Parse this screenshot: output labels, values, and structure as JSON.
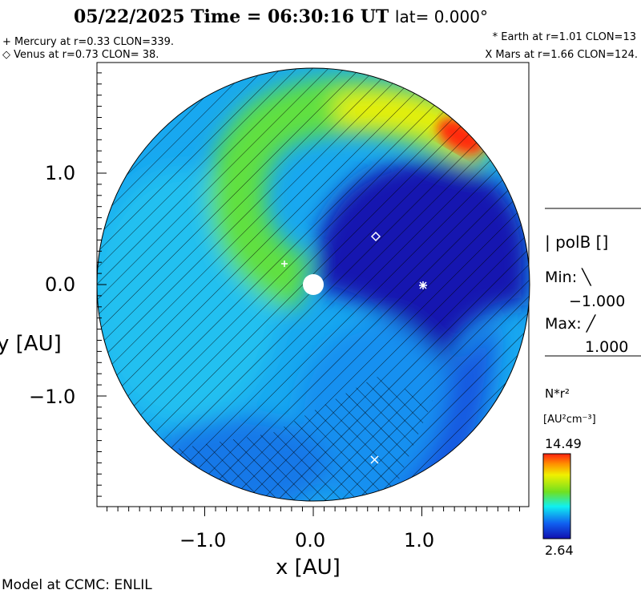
{
  "header": {
    "title_main": "05/22/2025 Time = 06:30:16 UT",
    "title_lat": "lat= 0.000°"
  },
  "planets": {
    "mercury": "+ Mercury at r=0.33 CLON=339.",
    "venus": "◇ Venus at r=0.73 CLON= 38.",
    "earth": "* Earth at  r=1.01 CLON=13",
    "mars": "X Mars at r=1.66 CLON=124."
  },
  "legend": {
    "polb_label": "|  polB []",
    "min_label": "Min: ╲",
    "min_value": "−1.000",
    "max_label": "Max: ╱",
    "max_value": "1.000",
    "colorbar_title": "N*r²",
    "colorbar_units": "[AU²cm⁻³]",
    "colorbar_max": "14.49",
    "colorbar_min": "2.64"
  },
  "footer": "Model at CCMC: ENLIL",
  "colors": {
    "red": "#ff2010",
    "yellow": "#f0f000",
    "green": "#70e020",
    "cyan": "#10f0f0",
    "blue": "#1060f0",
    "darkblue": "#1010b0"
  },
  "chart_data": {
    "type": "heatmap",
    "title": "05/22/2025 Time = 06:30:16 UT lat= 0.000°",
    "xlabel": "x [AU]",
    "ylabel": "y [AU]",
    "xlim": [
      -2,
      2
    ],
    "ylim": [
      -2,
      2
    ],
    "xticks": [
      "−1.0",
      "0.0",
      "1.0"
    ],
    "xtick_values": [
      -1,
      0,
      1
    ],
    "yticks": [
      "1.0",
      "0.0",
      "−1.0"
    ],
    "ytick_values": [
      1,
      0,
      -1
    ],
    "colorbar": {
      "label": "N*r² [AU²cm⁻³]",
      "min": 2.64,
      "max": 14.49
    },
    "planets": [
      {
        "name": "Mercury",
        "r": 0.33,
        "clon": 339,
        "marker": "+"
      },
      {
        "name": "Venus",
        "r": 0.73,
        "clon": 38,
        "marker": "diamond"
      },
      {
        "name": "Earth",
        "r": 1.01,
        "clon": 13,
        "marker": "*"
      },
      {
        "name": "Mars",
        "r": 1.66,
        "clon": 124,
        "marker": "x"
      }
    ]
  }
}
